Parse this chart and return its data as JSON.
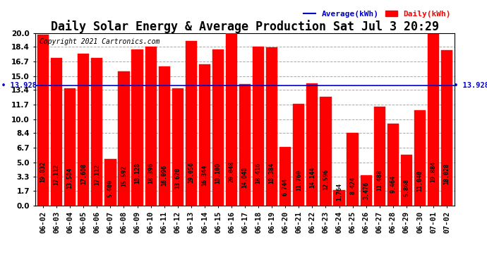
{
  "title": "Daily Solar Energy & Average Production Sat Jul 3 20:29",
  "copyright": "Copyright 2021 Cartronics.com",
  "legend_average": "Average(kWh)",
  "legend_daily": "Daily(kWh)",
  "categories": [
    "06-02",
    "06-03",
    "06-04",
    "06-05",
    "06-06",
    "06-07",
    "06-08",
    "06-09",
    "06-10",
    "06-11",
    "06-12",
    "06-13",
    "06-14",
    "06-15",
    "06-16",
    "06-17",
    "06-18",
    "06-19",
    "06-20",
    "06-21",
    "06-22",
    "06-23",
    "06-24",
    "06-25",
    "06-26",
    "06-27",
    "06-28",
    "06-29",
    "06-30",
    "07-01",
    "07-02"
  ],
  "values": [
    19.832,
    17.112,
    13.584,
    17.608,
    17.112,
    5.4,
    15.592,
    18.128,
    18.396,
    16.096,
    13.62,
    19.056,
    16.344,
    18.1,
    20.048,
    14.048,
    18.416,
    18.384,
    6.744,
    11.76,
    14.144,
    12.596,
    1.764,
    8.424,
    3.476,
    11.488,
    9.464,
    5.868,
    11.04,
    19.884,
    18.028
  ],
  "average_value": 13.928,
  "bar_color": "#ff0000",
  "average_line_color": "#0000cc",
  "average_label_color": "#0000cc",
  "bar_label_color": "#000000",
  "ylim": [
    0.0,
    20.0
  ],
  "yticks": [
    0.0,
    1.7,
    3.3,
    5.0,
    6.7,
    8.4,
    10.0,
    11.7,
    13.4,
    15.0,
    16.7,
    18.4,
    20.0
  ],
  "grid_color": "#aaaaaa",
  "plot_bg_color": "#ffffff",
  "fig_bg_color": "#ffffff",
  "title_fontsize": 12,
  "bar_label_fontsize": 6.0,
  "tick_fontsize": 7.5,
  "avg_label_fontsize": 7.5,
  "copyright_fontsize": 7,
  "legend_fontsize": 8
}
